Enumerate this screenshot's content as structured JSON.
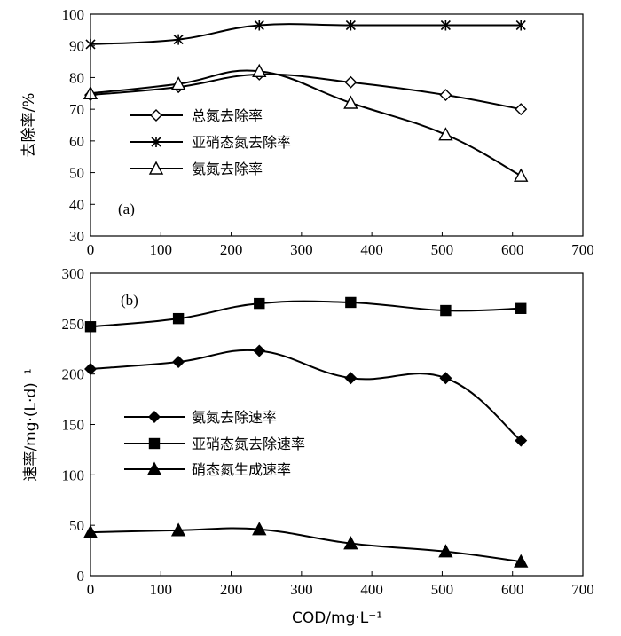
{
  "chart_data": [
    {
      "type": "line",
      "panel_label": "(a)",
      "xlabel": "",
      "ylabel": "去除率/%",
      "xlim": [
        0,
        700
      ],
      "ylim": [
        30,
        100
      ],
      "xticks": [
        "0",
        "100",
        "200",
        "300",
        "400",
        "500",
        "600",
        "700"
      ],
      "yticks": [
        "30",
        "40",
        "50",
        "60",
        "70",
        "80",
        "90",
        "100"
      ],
      "legend_position": "left",
      "x": [
        0,
        125,
        240,
        370,
        505,
        612
      ],
      "series": [
        {
          "name": "总氮去除率",
          "marker": "diamond-open",
          "values": [
            74.5,
            77,
            81,
            78.5,
            74.5,
            70
          ]
        },
        {
          "name": "亚硝态氮去除率",
          "marker": "star",
          "values": [
            90.5,
            92,
            96.5,
            96.5,
            96.5,
            96.5
          ]
        },
        {
          "name": "氨氮去除率",
          "marker": "triangle-open",
          "values": [
            75,
            78,
            82,
            72,
            62,
            49
          ]
        }
      ]
    },
    {
      "type": "line",
      "panel_label": "(b)",
      "xlabel": "COD/mg·L⁻¹",
      "ylabel": "速率/mg·(L·d)⁻¹",
      "xlim": [
        0,
        700
      ],
      "ylim": [
        0,
        300
      ],
      "xticks": [
        "0",
        "100",
        "200",
        "300",
        "400",
        "500",
        "600",
        "700"
      ],
      "yticks": [
        "0",
        "50",
        "100",
        "150",
        "200",
        "250",
        "300"
      ],
      "legend_position": "left",
      "x": [
        0,
        125,
        240,
        370,
        505,
        612
      ],
      "series": [
        {
          "name": "氨氮去除速率",
          "marker": "diamond-filled",
          "values": [
            205,
            212,
            223,
            196,
            196,
            134
          ]
        },
        {
          "name": "亚硝态氮去除速率",
          "marker": "square-filled",
          "values": [
            247,
            255,
            270,
            271,
            263,
            265
          ]
        },
        {
          "name": "硝态氮生成速率",
          "marker": "triangle-filled",
          "values": [
            43,
            45,
            46,
            32,
            24,
            14
          ]
        }
      ]
    }
  ]
}
